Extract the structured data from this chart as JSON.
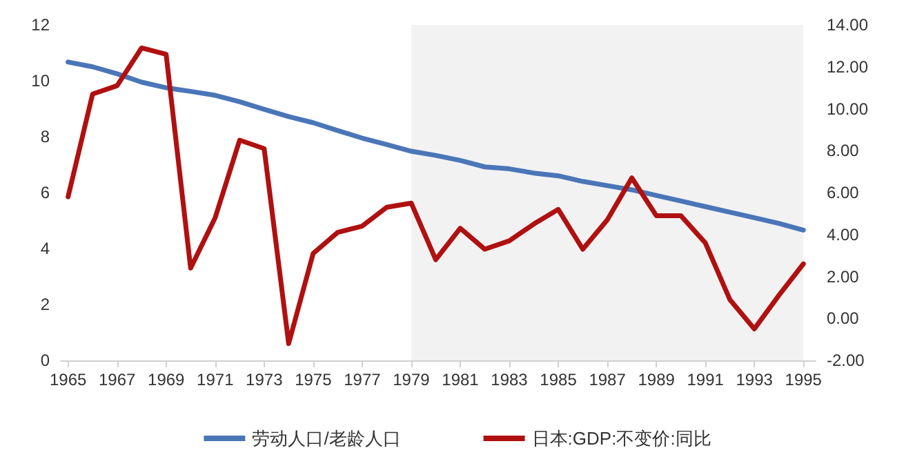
{
  "chart_data": {
    "type": "line",
    "x": [
      1965,
      1966,
      1967,
      1968,
      1969,
      1970,
      1971,
      1972,
      1973,
      1974,
      1975,
      1976,
      1977,
      1978,
      1979,
      1980,
      1981,
      1982,
      1983,
      1984,
      1985,
      1986,
      1987,
      1988,
      1989,
      1990,
      1991,
      1992,
      1993,
      1994,
      1995
    ],
    "series": [
      {
        "name": "劳动人口/老龄人口",
        "color": "#4a76b8",
        "values": [
          10.67,
          10.5,
          10.25,
          9.95,
          9.75,
          9.62,
          9.48,
          9.25,
          8.98,
          8.72,
          8.5,
          8.22,
          7.95,
          7.72,
          7.48,
          7.33,
          7.15,
          6.92,
          6.85,
          6.7,
          6.6,
          6.4,
          6.25,
          6.1,
          5.9,
          5.7,
          5.5,
          5.3,
          5.1,
          4.9,
          4.66
        ]
      },
      {
        "name": "日本:GDP:不变价:同比",
        "color": "#b01010",
        "axis": "y2",
        "values": [
          5.8,
          10.7,
          11.1,
          12.9,
          12.6,
          2.4,
          4.8,
          8.5,
          8.1,
          -1.2,
          3.1,
          4.1,
          4.4,
          5.3,
          5.5,
          2.8,
          4.3,
          3.3,
          3.7,
          4.5,
          5.2,
          3.3,
          4.7,
          6.7,
          4.9,
          4.9,
          3.6,
          0.9,
          -0.5,
          1.1,
          2.6
        ]
      }
    ],
    "xlim": [
      1964.7,
      1995.5
    ],
    "xticks": [
      1965,
      1967,
      1969,
      1971,
      1973,
      1975,
      1977,
      1979,
      1981,
      1983,
      1985,
      1987,
      1989,
      1991,
      1993,
      1995
    ],
    "ylim": [
      0,
      12
    ],
    "yticks": [
      0,
      2,
      4,
      6,
      8,
      10,
      12
    ],
    "y2lim": [
      -2,
      14
    ],
    "y2ticks": [
      {
        "value": -2,
        "label": "-2.00"
      },
      {
        "value": 0,
        "label": "0.00"
      },
      {
        "value": 2,
        "label": "2.00"
      },
      {
        "value": 4,
        "label": "4.00"
      },
      {
        "value": 6,
        "label": "6.00"
      },
      {
        "value": 8,
        "label": "8.00"
      },
      {
        "value": 10,
        "label": "10.00"
      },
      {
        "value": 12,
        "label": "12.00"
      },
      {
        "value": 14,
        "label": "14.00"
      }
    ],
    "bands": [
      {
        "axis": "x",
        "from": 1979,
        "to": 1995,
        "color": "#f2f2f2"
      }
    ],
    "grid": false,
    "legend": "bottom",
    "marker": "none",
    "line_style": "solid"
  }
}
